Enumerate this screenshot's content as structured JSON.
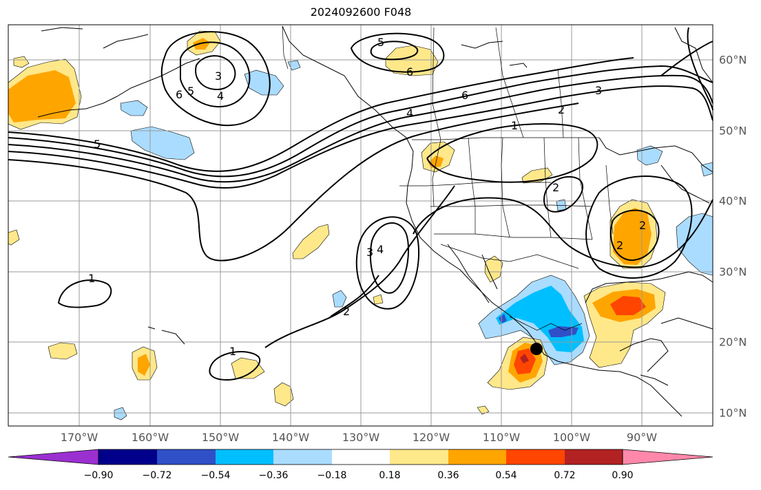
{
  "title": "2024092600 F048",
  "lon_labels": [
    "170°W",
    "160°W",
    "150°W",
    "140°W",
    "130°W",
    "120°W",
    "110°W",
    "100°W",
    "90°W"
  ],
  "lat_labels": [
    "60°N",
    "50°N",
    "40°N",
    "30°N",
    "20°N",
    "10°N"
  ],
  "colorbar": {
    "ticks": [
      "−0.90",
      "−0.72",
      "−0.54",
      "−0.36",
      "−0.18",
      "0.18",
      "0.36",
      "0.54",
      "0.72",
      "0.90"
    ],
    "colors": [
      "#9b30d0",
      "#00008b",
      "#3050c8",
      "#00bfff",
      "#aadcff",
      "#ffffff",
      "#ffe88a",
      "#ffa500",
      "#ff4500",
      "#b22222",
      "#ff88aa"
    ]
  },
  "contour_labels": [
    "5",
    "6",
    "3",
    "5",
    "6",
    "4",
    "6",
    "4",
    "3",
    "2",
    "1",
    "2",
    "5",
    "3",
    "4",
    "2",
    "1",
    "1",
    "2",
    "2"
  ],
  "marker_color": "#000000"
}
